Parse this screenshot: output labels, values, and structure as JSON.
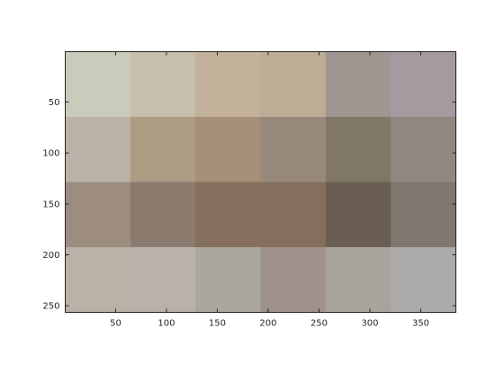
{
  "chart_data": {
    "type": "heatmap",
    "title": "",
    "xlabel": "",
    "ylabel": "",
    "x_range": [
      0.5,
      384.5
    ],
    "y_range": [
      0.5,
      256.5
    ],
    "y_direction": "reversed",
    "grid": false,
    "legend": "none",
    "cols": 6,
    "rows": 4,
    "cell_colors": [
      [
        "#cbcbbb",
        "#c5bfac",
        "#c3b29b",
        "#bdad97",
        "#a09691",
        "#a69aa0"
      ],
      [
        "#bbb2a7",
        "#ad9b83",
        "#a68f77",
        "#978a7c",
        "#807767",
        "#91897f"
      ],
      [
        "#9d8d80",
        "#8b7b6f",
        "#866f5d",
        "#846f5f",
        "#6a5e53",
        "#817771"
      ],
      [
        "#bab1a7",
        "#b8b2ab",
        "#aca6a1",
        "#9e928a",
        "#a9a39e",
        "#adabaa"
      ]
    ],
    "x_ticks": [
      50,
      100,
      150,
      200,
      250,
      300,
      350
    ],
    "y_ticks": [
      50,
      100,
      150,
      200,
      250
    ],
    "x_tick_labels": [
      "50",
      "100",
      "150",
      "200",
      "250",
      "300",
      "350"
    ],
    "y_tick_labels": [
      "50",
      "100",
      "150",
      "200",
      "250"
    ]
  }
}
